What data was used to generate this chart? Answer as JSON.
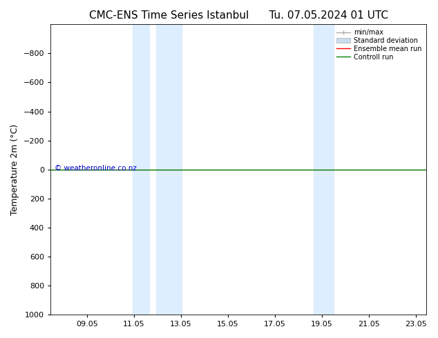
{
  "title_left": "CMC-ENS Time Series Istanbul",
  "title_right": "Tu. 07.05.2024 01 UTC",
  "ylabel": "Temperature 2m (°C)",
  "xlim": [
    7.5,
    23.5
  ],
  "ylim": [
    1000,
    -1000
  ],
  "yticks": [
    -800,
    -600,
    -400,
    -200,
    0,
    200,
    400,
    600,
    800,
    1000
  ],
  "xticks": [
    9.05,
    11.05,
    13.05,
    15.05,
    17.05,
    19.05,
    21.05,
    23.05
  ],
  "xtick_labels": [
    "09.05",
    "11.05",
    "13.05",
    "15.05",
    "17.05",
    "19.05",
    "21.05",
    "23.05"
  ],
  "shaded_bands": [
    [
      11.0,
      11.7
    ],
    [
      12.0,
      13.1
    ],
    [
      18.7,
      19.05
    ],
    [
      19.05,
      19.55
    ]
  ],
  "watermark": "© weatheronline.co.nz",
  "watermark_color": "#0000cc",
  "bg_color": "#ffffff",
  "plot_bg_color": "#ffffff",
  "shade_color": "#ddeeff",
  "legend_entries": [
    "min/max",
    "Standard deviation",
    "Ensemble mean run",
    "Controll run"
  ],
  "legend_colors": [
    "#aaaaaa",
    "#c8dff0",
    "#ff0000",
    "#008000"
  ],
  "line_y_value": 0.0,
  "x_start": 7.5,
  "x_end": 23.5,
  "title_fontsize": 11,
  "axis_fontsize": 9,
  "tick_fontsize": 8,
  "spine_color": "#000000"
}
